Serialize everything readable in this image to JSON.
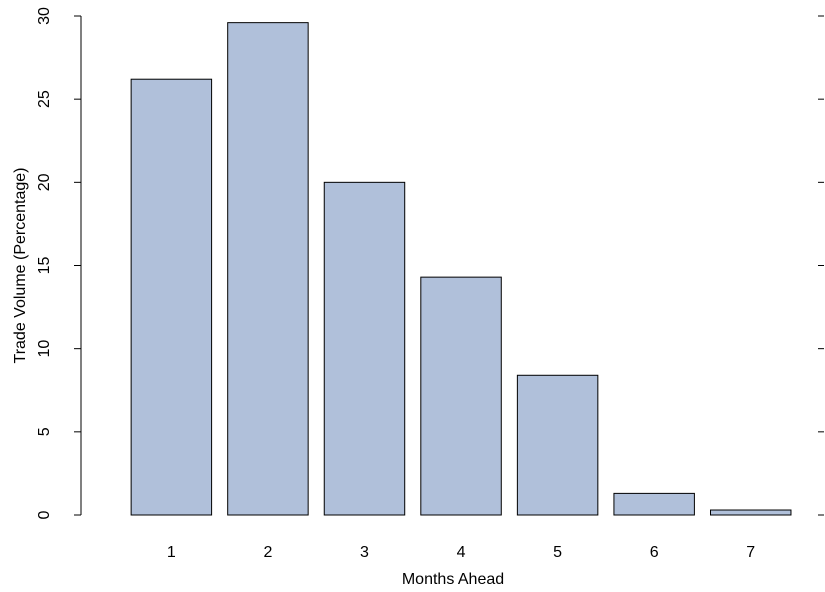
{
  "chart_data": {
    "type": "bar",
    "title": "",
    "xlabel": "Months Ahead",
    "ylabel": "Trade Volume (Percentage)",
    "categories": [
      "1",
      "2",
      "3",
      "4",
      "5",
      "6",
      "7"
    ],
    "values": [
      26.2,
      29.6,
      20.0,
      14.3,
      8.4,
      1.3,
      0.3
    ],
    "ylim": [
      0,
      30
    ],
    "y_ticks": [
      0,
      5,
      10,
      15,
      20,
      25,
      30
    ],
    "y_tick_labels": [
      "0",
      "5",
      "10",
      "15",
      "20",
      "25",
      "30"
    ],
    "grid": false,
    "legend": "none",
    "right_axis_ticks": true,
    "colors": {
      "bar_fill": "#b0c0da",
      "bar_stroke": "#000000"
    }
  }
}
